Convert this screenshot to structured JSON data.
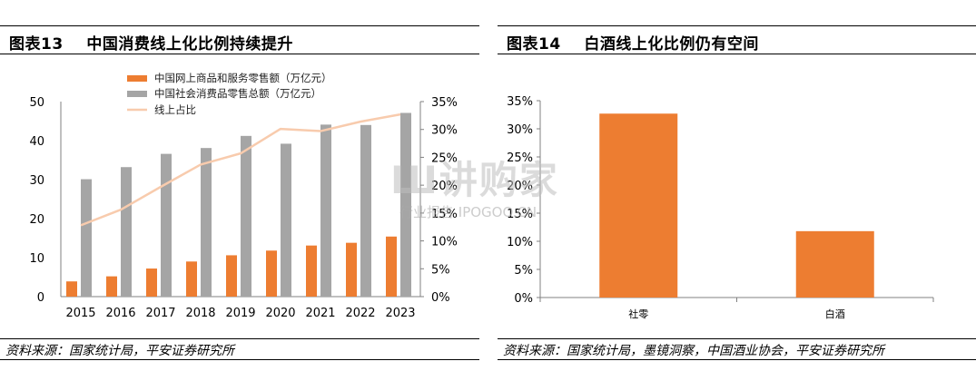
{
  "left": {
    "title": "图表13    中国消费线上化比例持续提升",
    "source": "资料来源：国家统计局，平安证券研究所",
    "colors": {
      "online": "#ED7D31",
      "total": "#A5A5A5",
      "ratio": "#F8CBAD"
    }
  },
  "right": {
    "title": "图表14    白酒线上化比例仍有空间",
    "source": "资料来源：国家统计局，墨镜洞察，中国酒业协会，平安证券研究所",
    "colors": {
      "bar": "#ED7D31"
    }
  },
  "watermark": {
    "main": "Ш讲购家",
    "sub": "行业报告 IPOGOO.CN"
  },
  "chart_data": [
    {
      "type": "bar",
      "categories": [
        "2015",
        "2016",
        "2017",
        "2018",
        "2019",
        "2020",
        "2021",
        "2022",
        "2023"
      ],
      "series": [
        {
          "name": "中国网上商品和服务零售额（万亿元）",
          "kind": "bar",
          "axis": "left",
          "values": [
            3.9,
            5.2,
            7.2,
            9.0,
            10.6,
            11.8,
            13.1,
            13.8,
            15.4
          ]
        },
        {
          "name": "中国社会消费品零售总额（万亿元）",
          "kind": "bar",
          "axis": "left",
          "values": [
            30.1,
            33.2,
            36.6,
            38.1,
            41.2,
            39.2,
            44.1,
            44.0,
            47.1
          ]
        },
        {
          "name": "线上占比",
          "kind": "line",
          "axis": "right",
          "values": [
            0.128,
            0.156,
            0.197,
            0.237,
            0.257,
            0.301,
            0.297,
            0.314,
            0.327
          ]
        }
      ],
      "yleft": {
        "lim": [
          0,
          50
        ],
        "ticks": [
          "0",
          "10",
          "20",
          "30",
          "40",
          "50"
        ]
      },
      "yright": {
        "lim": [
          0,
          0.35
        ],
        "ticks": [
          "0%",
          "5%",
          "10%",
          "15%",
          "20%",
          "25%",
          "30%",
          "35%"
        ]
      },
      "legend": "top-left",
      "grid": false
    },
    {
      "type": "bar",
      "categories": [
        "社零",
        "白酒"
      ],
      "values": [
        0.327,
        0.118
      ],
      "ylim": [
        0,
        0.35
      ],
      "yticks": [
        "0%",
        "5%",
        "10%",
        "15%",
        "20%",
        "25%",
        "30%",
        "35%"
      ],
      "grid": false
    }
  ]
}
